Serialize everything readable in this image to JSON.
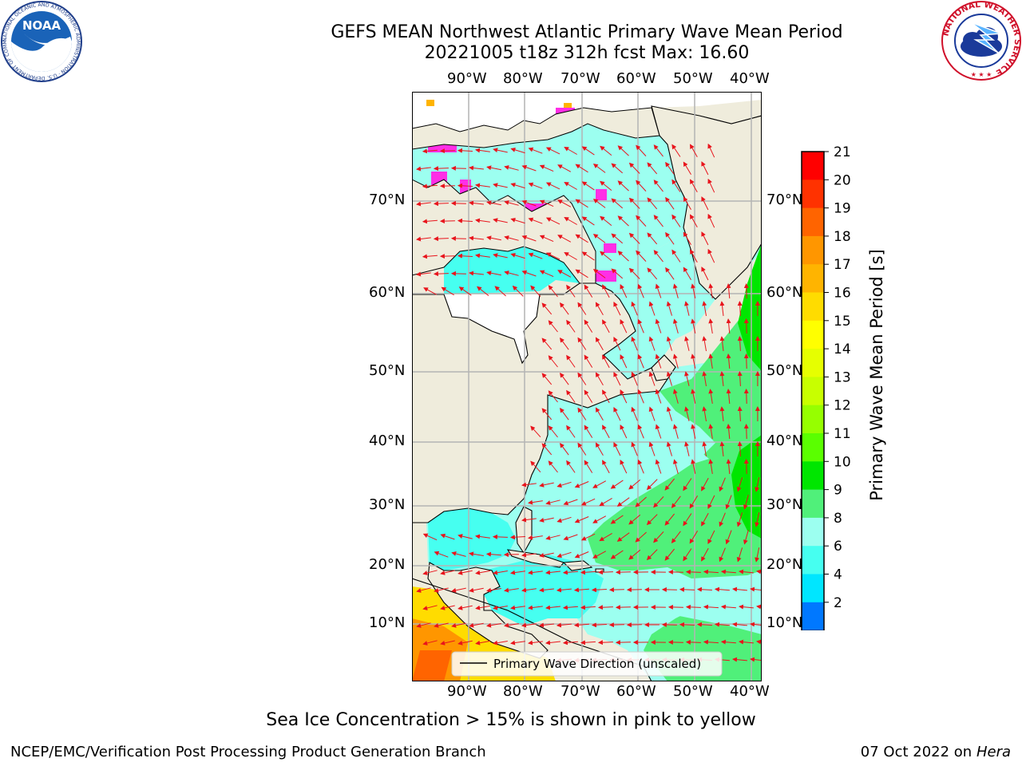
{
  "title": {
    "line1": "GEFS MEAN Northwest Atlantic Primary Wave Mean Period",
    "line2": "20221005 t18z 312h fcst   Max: 16.60"
  },
  "map": {
    "lon_ticks": [
      "90°W",
      "80°W",
      "70°W",
      "60°W",
      "50°W",
      "40°W"
    ],
    "lat_ticks": [
      "70°N",
      "60°N",
      "50°N",
      "40°N",
      "30°N",
      "20°N",
      "10°N"
    ],
    "legend_label": "Primary Wave Direction (unscaled)",
    "colors": {
      "land": "#efecdc",
      "arrow": "#e8141c",
      "grid": "#b4b4b4",
      "ice": "#ff2ee6"
    }
  },
  "colorbar": {
    "label": "Primary Wave Mean Period [s]",
    "ticks": [
      "21",
      "20",
      "19",
      "18",
      "17",
      "16",
      "15",
      "14",
      "13",
      "12",
      "11",
      "10",
      "9",
      "8",
      "6",
      "4",
      "2"
    ],
    "colors": [
      "#ff0000",
      "#ff3200",
      "#ff6400",
      "#ff9600",
      "#ffb400",
      "#ffdc00",
      "#ffff00",
      "#e6ff00",
      "#c8ff00",
      "#96ff00",
      "#5aff00",
      "#00e600",
      "#50f07a",
      "#9cfff0",
      "#46fff0",
      "#00e6ff",
      "#0078ff"
    ],
    "under_color": "#0000ff"
  },
  "caption": "Sea Ice Concentration > 15% is shown in pink to yellow",
  "footer": {
    "left": "NCEP/EMC/Verification Post Processing Product Generation Branch",
    "right_date": "07 Oct 2022 on ",
    "right_host": "Hera"
  },
  "logos": {
    "noaa_text": "NOAA",
    "noaa_ring": "NATIONAL OCEANIC AND ATMOSPHERIC ADMINISTRATION · U.S. DEPARTMENT OF COMMERCE",
    "nws_ring": "NATIONAL WEATHER SERVICE"
  }
}
